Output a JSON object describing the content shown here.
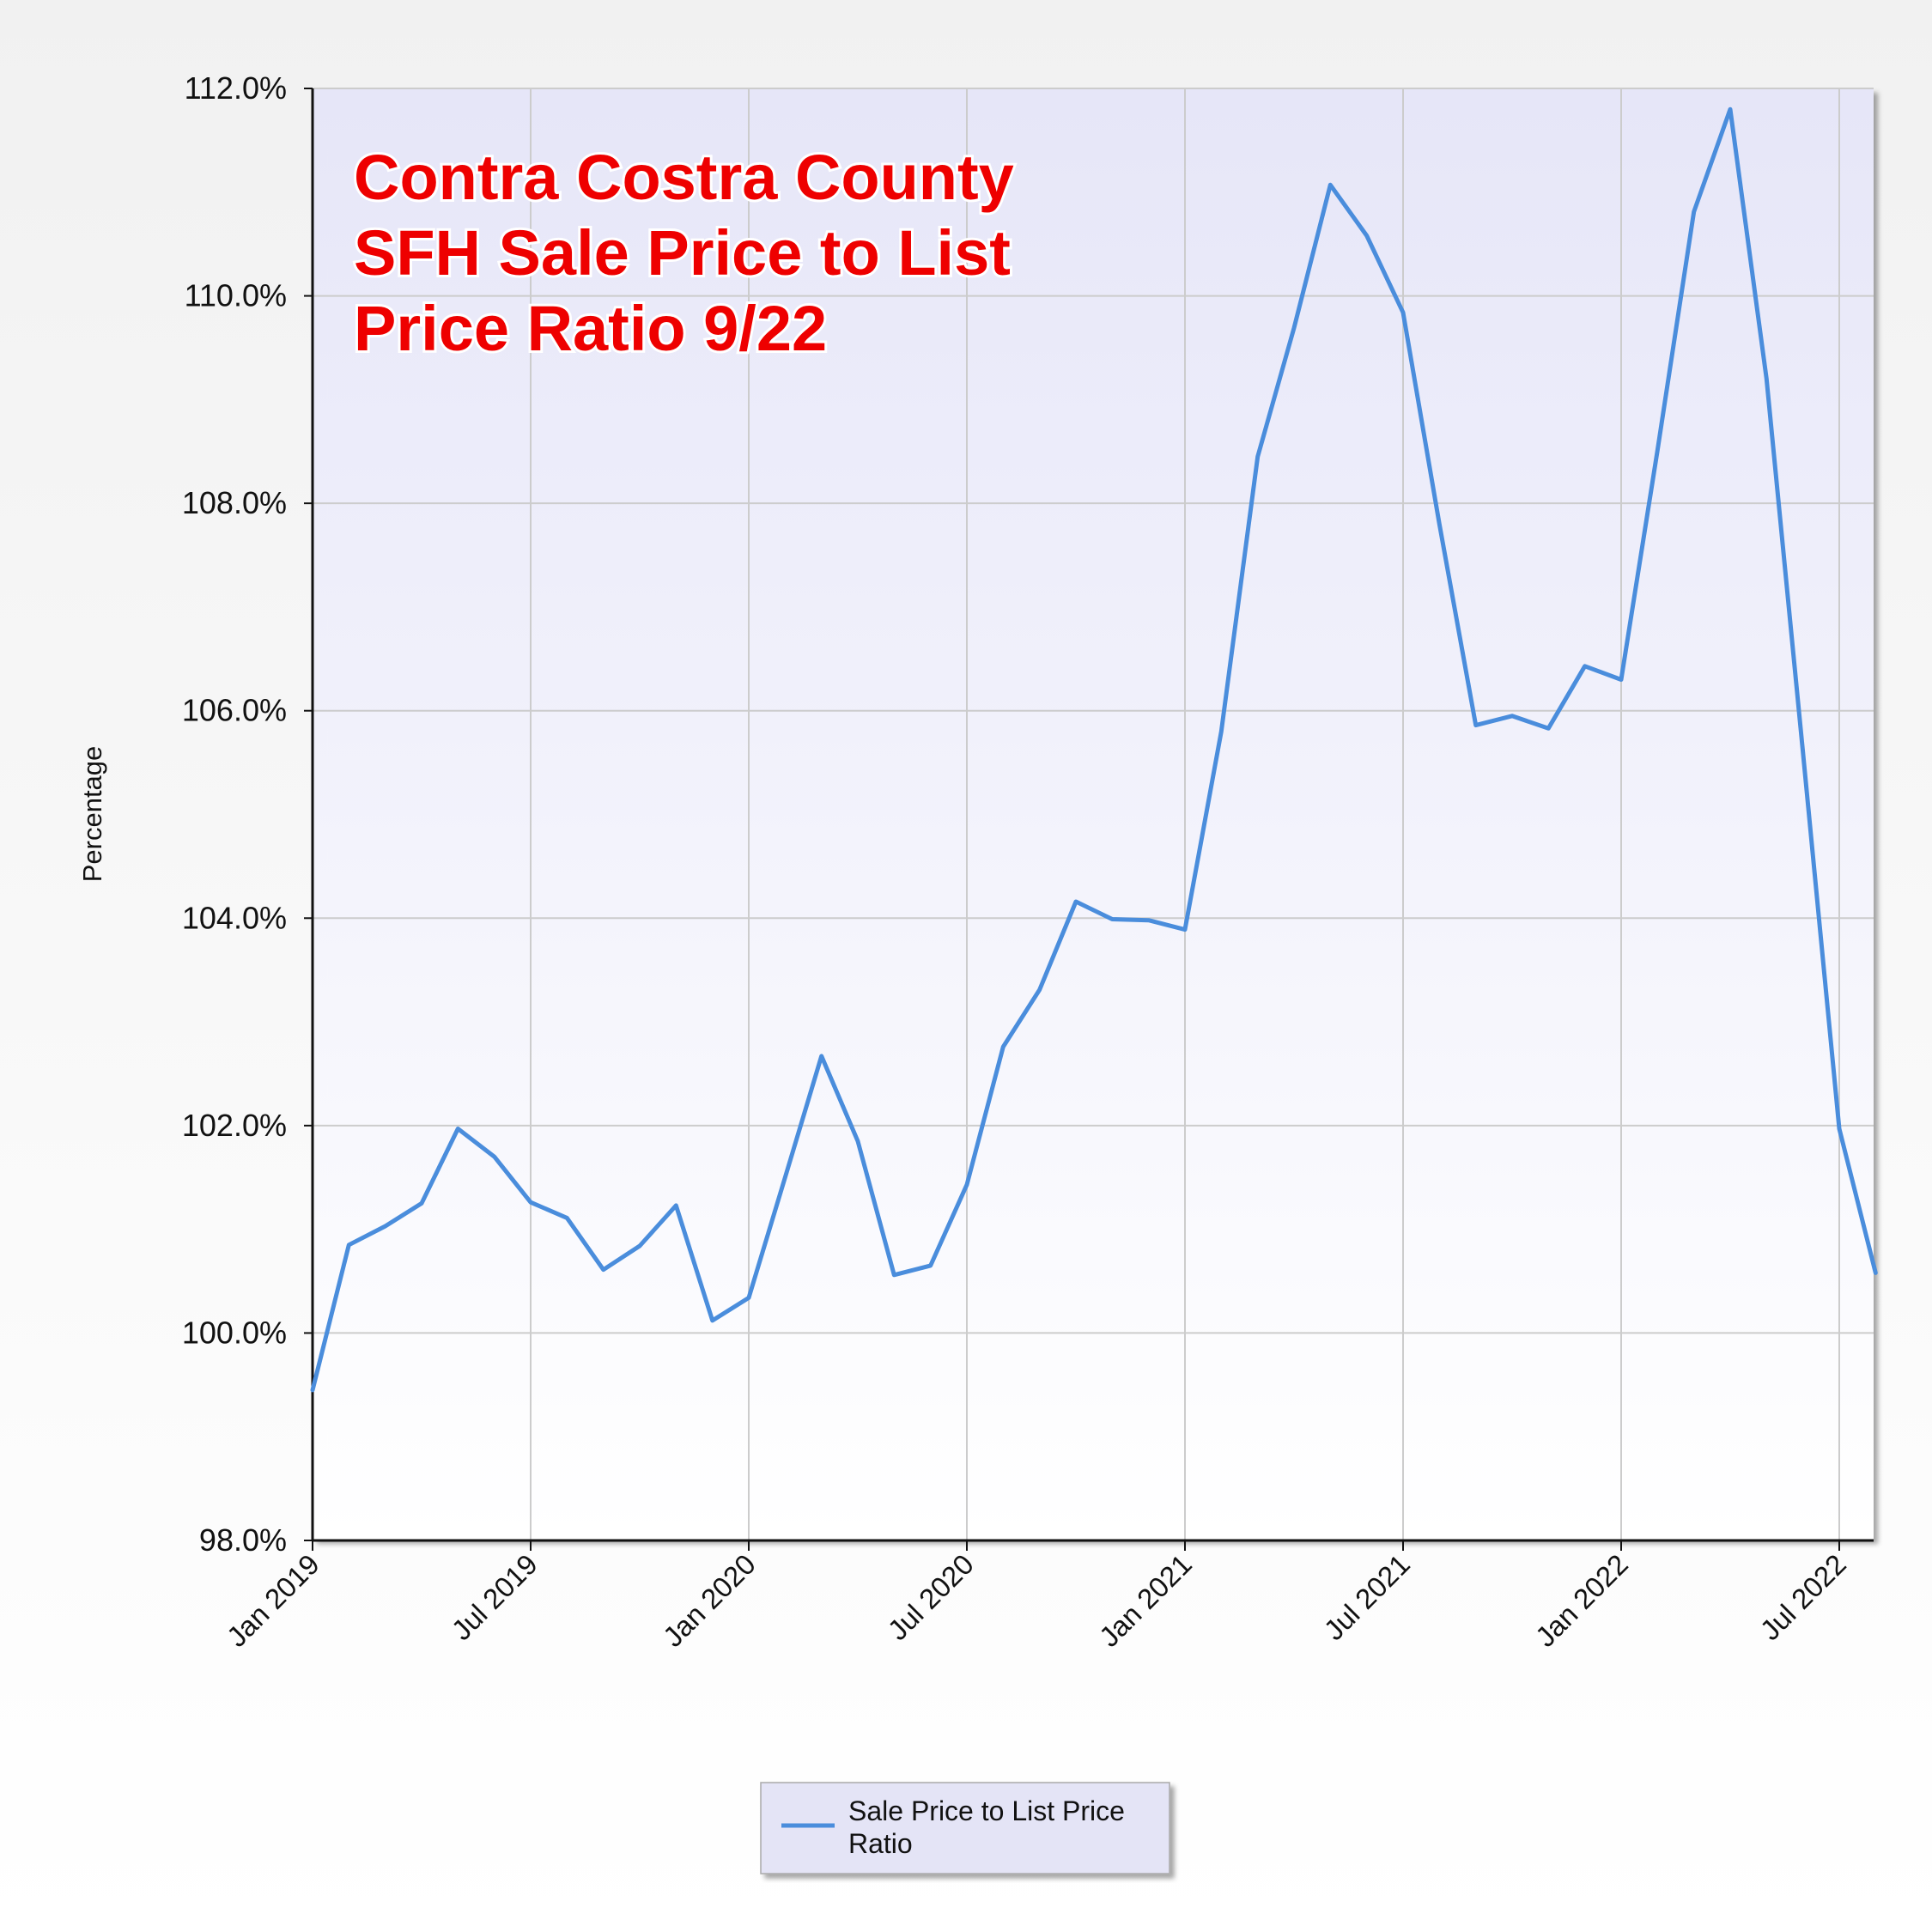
{
  "chart_data": {
    "type": "line",
    "title_lines": [
      "Contra Costra County",
      "SFH Sale Price to List",
      "Price Ratio 9/22"
    ],
    "ylabel": "Percentage",
    "xlabel": "",
    "ylim": [
      98.0,
      112.0
    ],
    "yticks": [
      "98.0%",
      "100.0%",
      "102.0%",
      "104.0%",
      "106.0%",
      "108.0%",
      "110.0%",
      "112.0%"
    ],
    "ytick_values": [
      98,
      100,
      102,
      104,
      106,
      108,
      110,
      112
    ],
    "xticks": [
      "Jan 2019",
      "Jul 2019",
      "Jan 2020",
      "Jul 2020",
      "Jan 2021",
      "Jul 2021",
      "Jan 2022",
      "Jul 2022"
    ],
    "xtick_months": [
      "2019-01",
      "2019-07",
      "2020-01",
      "2020-07",
      "2021-01",
      "2021-07",
      "2022-01",
      "2022-07"
    ],
    "x_range": [
      "2019-01",
      "2022-08"
    ],
    "grid": true,
    "legend_position": "bottom-center",
    "series": [
      {
        "name": "Sale Price to List Price Ratio",
        "color": "#4a8ddc",
        "x": [
          "2019-01",
          "2019-02",
          "2019-03",
          "2019-04",
          "2019-05",
          "2019-06",
          "2019-07",
          "2019-08",
          "2019-09",
          "2019-10",
          "2019-11",
          "2019-12",
          "2020-01",
          "2020-02",
          "2020-03",
          "2020-04",
          "2020-05",
          "2020-06",
          "2020-07",
          "2020-08",
          "2020-09",
          "2020-10",
          "2020-11",
          "2020-12",
          "2021-01",
          "2021-02",
          "2021-03",
          "2021-04",
          "2021-05",
          "2021-06",
          "2021-07",
          "2021-08",
          "2021-09",
          "2021-10",
          "2021-11",
          "2021-12",
          "2022-01",
          "2022-02",
          "2022-03",
          "2022-04",
          "2022-05",
          "2022-06",
          "2022-07",
          "2022-08"
        ],
        "values": [
          99.45,
          100.85,
          101.03,
          101.25,
          101.97,
          101.7,
          101.26,
          101.11,
          100.61,
          100.84,
          101.23,
          100.12,
          100.34,
          101.5,
          102.67,
          101.85,
          100.56,
          100.65,
          101.43,
          102.76,
          103.31,
          104.16,
          103.99,
          103.98,
          103.89,
          105.8,
          108.45,
          109.69,
          111.07,
          110.58,
          109.84,
          107.8,
          105.86,
          105.95,
          105.83,
          106.43,
          106.3,
          108.51,
          110.81,
          111.8,
          109.2,
          105.6,
          101.97,
          100.58
        ]
      }
    ]
  },
  "legend": {
    "lines": [
      "Sale Price to List Price",
      "Ratio"
    ],
    "color": "#4a8ddc"
  },
  "colors": {
    "plot_top": "#e6e6f8",
    "plot_bottom": "#ffffff",
    "grid": "#cccccc",
    "axis": "#111111",
    "title": "#ee0000"
  }
}
